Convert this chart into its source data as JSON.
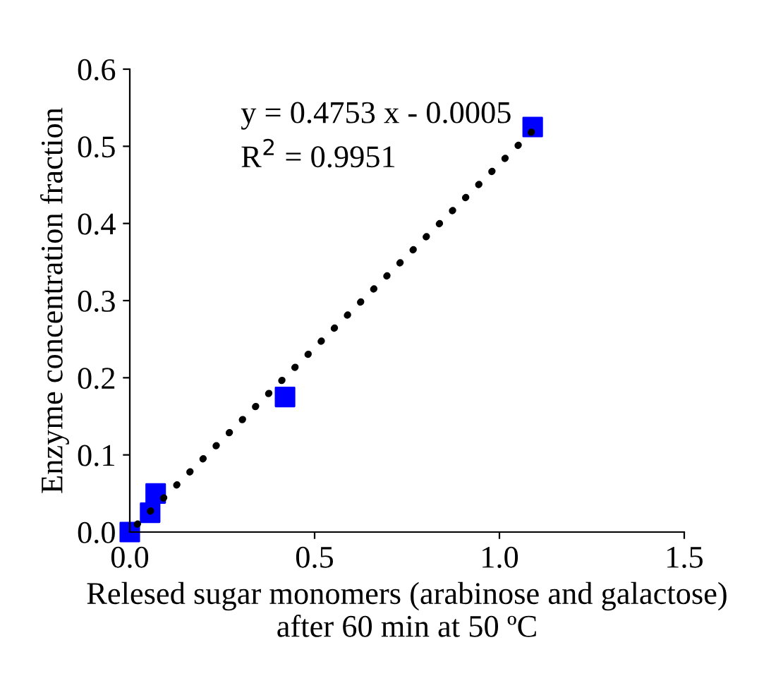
{
  "chart_data": {
    "type": "scatter",
    "xlabel": "Relesed sugar monomers (arabinose and galactose)\nafter 60 min at 50 ºC",
    "ylabel": "Enzyme concentration fraction",
    "series": [
      {
        "color": "#0000ff",
        "marker": "square",
        "x": [
          0.0,
          0.055,
          0.07,
          0.42,
          1.09
        ],
        "values": [
          0.0,
          0.025,
          0.05,
          0.175,
          0.525
        ]
      },
      {
        "type": "line",
        "color": "#000000",
        "line_style": "dotted",
        "x": [
          0.02,
          1.09
        ],
        "values": [
          0.01,
          0.52
        ]
      }
    ],
    "annotations": [
      "y = 0.4753 x - 0.0005",
      "R$^{2}$ = 0.9951"
    ],
    "xlim": [
      0,
      1.5
    ],
    "xticks": [
      {
        "value": 0,
        "label": "0.0"
      },
      0.5,
      {
        "value": 1,
        "label": "1.0"
      },
      1.5
    ],
    "ylim": [
      0,
      0.6
    ],
    "yticks": [
      {
        "value": 0,
        "label": "0.0"
      },
      0.1,
      0.2,
      0.3,
      0.4,
      0.5,
      0.6
    ],
    "grid": false,
    "legend": false
  }
}
